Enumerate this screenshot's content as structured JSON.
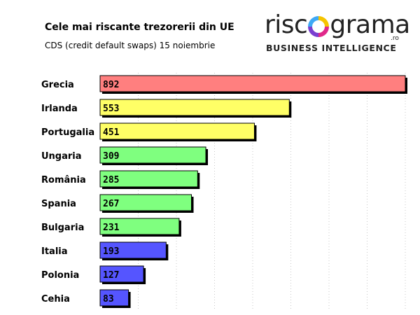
{
  "header": {
    "title": "Cele mai riscante trezorerii din UE",
    "subtitle": "CDS (credit default swaps) 15 noiembrie"
  },
  "logo": {
    "word_left": "risc",
    "word_right": "grama",
    "suffix": ".ro",
    "tagline": "BUSINESS INTELLIGENCE",
    "ring_colors": [
      "#f5c400",
      "#e0288a",
      "#7a3fd0",
      "#3fa9f5"
    ]
  },
  "chart_data": {
    "type": "bar",
    "orientation": "horizontal",
    "title": "Cele mai riscante trezorerii din UE",
    "subtitle": "CDS (credit default swaps) 15 noiembrie",
    "categories": [
      "Grecia",
      "Irlanda",
      "Portugalia",
      "Ungaria",
      "România",
      "Spania",
      "Bulgaria",
      "Italia",
      "Polonia",
      "Cehia"
    ],
    "values": [
      892,
      553,
      451,
      309,
      285,
      267,
      231,
      193,
      127,
      83
    ],
    "bar_colors": [
      "#ff7f7f",
      "#ffff66",
      "#ffff66",
      "#7fff7f",
      "#7fff7f",
      "#7fff7f",
      "#7fff7f",
      "#5555ff",
      "#5555ff",
      "#5555ff"
    ],
    "xlim": [
      0,
      892
    ],
    "grid": true,
    "data_labels": true
  }
}
